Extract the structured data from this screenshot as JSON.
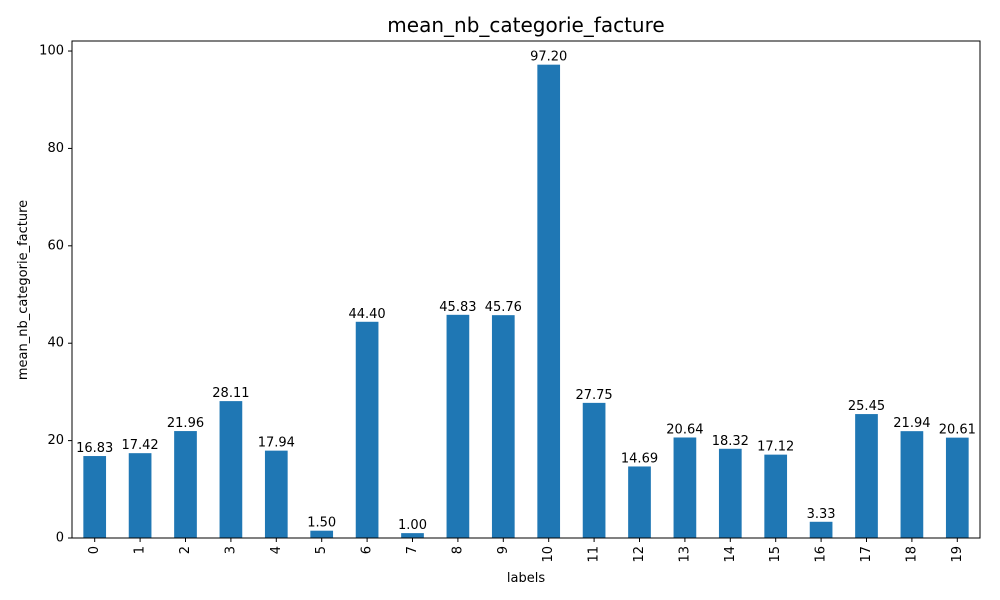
{
  "chart_data": {
    "type": "bar",
    "title": "mean_nb_categorie_facture",
    "xlabel": "labels",
    "ylabel": "mean_nb_categorie_facture",
    "categories": [
      "0",
      "1",
      "2",
      "3",
      "4",
      "5",
      "6",
      "7",
      "8",
      "9",
      "10",
      "11",
      "12",
      "13",
      "14",
      "15",
      "16",
      "17",
      "18",
      "19"
    ],
    "values": [
      16.83,
      17.42,
      21.96,
      28.11,
      17.94,
      1.5,
      44.4,
      1.0,
      45.83,
      45.76,
      97.2,
      27.75,
      14.69,
      20.64,
      18.32,
      17.12,
      3.33,
      25.45,
      21.94,
      20.61
    ],
    "value_labels": [
      "16.83",
      "17.42",
      "21.96",
      "28.11",
      "17.94",
      "1.50",
      "44.40",
      "1.00",
      "45.83",
      "45.76",
      "97.20",
      "27.75",
      "14.69",
      "20.64",
      "18.32",
      "17.12",
      "3.33",
      "25.45",
      "21.94",
      "20.61"
    ],
    "ylim": [
      0,
      102.06
    ],
    "yticks": [
      0,
      20,
      40,
      60,
      80,
      100
    ],
    "ytick_labels": [
      "0",
      "20",
      "40",
      "60",
      "80",
      "100"
    ],
    "grid": false,
    "legend": "none",
    "bar_color": "#1f77b4"
  }
}
